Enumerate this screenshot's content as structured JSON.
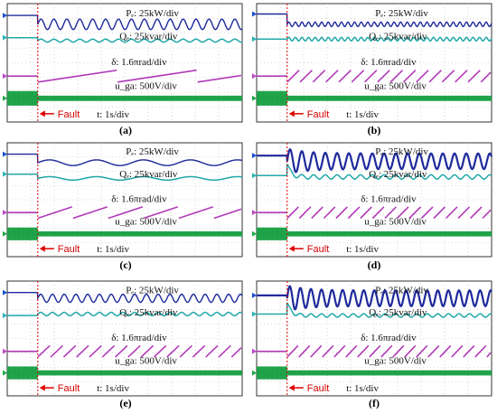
{
  "colors": {
    "P": "#1f2a9c",
    "Q": "#22a8a8",
    "delta": "#b23ab8",
    "u": "#18a045",
    "fault": "#e00000",
    "grid": "#b8b8b8",
    "frame": "#333333",
    "marker_P": "#1a4fd0",
    "marker_Q": "#2bb5b5",
    "marker_d": "#c04bc8",
    "marker_u": "#20a84a"
  },
  "icons": {
    "fault_arrow": "left-arrow-icon",
    "channel_marker": "triangle-marker-icon"
  },
  "chart_data": [
    {
      "panel": "(a)",
      "type": "line",
      "labels": {
        "P": "Pₑ:  25kW/div",
        "Q": "Qₑ:  25kvar/div",
        "delta": "δ:  1.6πrad/div",
        "u": "u_ga:  500V/div",
        "fault": "Fault",
        "time": "t:  1s/div"
      },
      "x_unit": "s",
      "x_per_div": 1,
      "fault_time_div": 1.3,
      "series": [
        {
          "name": "Pₑ",
          "pre_fault_div": 7.2,
          "post_fault_mean_div": 6.6,
          "oscillation_amp_div": 0.35,
          "oscillation_period_div": 0.55
        },
        {
          "name": "Qₑ",
          "pre_fault_div": 5.7,
          "post_fault_mean_div": 5.5,
          "oscillation_amp_div": 0.1
        },
        {
          "name": "δ",
          "pre_fault_div": 3.1,
          "post_fault_sawtooth_period_div": 3.4
        },
        {
          "name": "u_ga",
          "pre_fault_div": 1.6,
          "post_fault_div": 1.6
        }
      ]
    },
    {
      "panel": "(b)",
      "type": "line",
      "labels": {
        "P": "Pₑ:  25kW/div",
        "Q": "Qₑ:  25kvar/div",
        "delta": "δ:  1.6πrad/div",
        "u": "u_ga:  500V/div",
        "fault": "Fault",
        "time": "t:  1s/div"
      },
      "x_unit": "s",
      "x_per_div": 1,
      "fault_time_div": 1.3,
      "series": [
        {
          "name": "Pₑ",
          "pre_fault_div": 7.3,
          "post_fault_mean_div": 6.6,
          "oscillation_amp_div": 0.15,
          "oscillation_period_div": 0.28
        },
        {
          "name": "Qₑ",
          "pre_fault_div": 5.6,
          "post_fault_mean_div": 5.6,
          "oscillation_amp_div": 0.12
        },
        {
          "name": "δ",
          "pre_fault_div": 3.1,
          "post_fault_sawtooth_period_div": 0.55
        },
        {
          "name": "u_ga",
          "pre_fault_div": 1.6,
          "post_fault_div": 1.6
        }
      ]
    },
    {
      "panel": "(c)",
      "type": "line",
      "labels": {
        "P": "Pₑ:  25kW/div",
        "Q": "Qₑ:  25kvar/div",
        "delta": "δ:  1.6πrad/div",
        "u": "u_ga:  500V/div",
        "fault": "Fault",
        "time": "t:  1s/div"
      },
      "x_unit": "s",
      "x_per_div": 1,
      "fault_time_div": 1.3,
      "series": [
        {
          "name": "Pₑ",
          "pre_fault_div": 7.2,
          "post_fault_mean_div": 6.6,
          "oscillation_amp_div": 0.2,
          "oscillation_period_div": 2.0
        },
        {
          "name": "Qₑ",
          "pre_fault_div": 5.8,
          "post_fault_mean_div": 5.5,
          "oscillation_amp_div": 0.12
        },
        {
          "name": "δ",
          "pre_fault_div": 3.1,
          "post_fault_sawtooth_period_div": 1.5
        },
        {
          "name": "u_ga",
          "pre_fault_div": 1.6,
          "post_fault_div": 1.6
        }
      ]
    },
    {
      "panel": "(d)",
      "type": "line",
      "labels": {
        "P": "Pₑ:  25kW/div",
        "Q": "Qₑ:  25kvar/div",
        "delta": "δ:  1.6πrad/div",
        "u": "u_ga:  500V/div",
        "fault": "Fault",
        "time": "t:  1s/div"
      },
      "x_unit": "s",
      "x_per_div": 1,
      "fault_time_div": 1.3,
      "series": [
        {
          "name": "Pₑ",
          "pre_fault_div": 7.1,
          "post_fault_mean_div": 6.7,
          "oscillation_amp_div": 0.55,
          "oscillation_period_div": 0.5
        },
        {
          "name": "Qₑ",
          "pre_fault_div": 5.7,
          "post_fault_mean_div": 5.6,
          "oscillation_amp_div": 0.15
        },
        {
          "name": "δ",
          "pre_fault_div": 3.1,
          "post_fault_sawtooth_period_div": 0.52
        },
        {
          "name": "u_ga",
          "pre_fault_div": 1.6,
          "post_fault_div": 1.6
        }
      ]
    },
    {
      "panel": "(e)",
      "type": "line",
      "labels": {
        "P": "Pₑ:  25kW/div",
        "Q": "Qₑ:  25kvar/div",
        "delta": "δ:  1.6πrad/div",
        "u": "u_ga:  500V/div",
        "fault": "Fault",
        "time": "t:  1s/div"
      },
      "x_unit": "s",
      "x_per_div": 1,
      "fault_time_div": 1.3,
      "series": [
        {
          "name": "Pₑ",
          "pre_fault_div": 7.2,
          "post_fault_mean_div": 6.8,
          "oscillation_amp_div": 0.28,
          "oscillation_period_div": 0.5
        },
        {
          "name": "Qₑ",
          "pre_fault_div": 5.6,
          "post_fault_mean_div": 5.7,
          "oscillation_amp_div": 0.12
        },
        {
          "name": "δ",
          "pre_fault_div": 3.1,
          "post_fault_sawtooth_period_div": 0.55
        },
        {
          "name": "u_ga",
          "pre_fault_div": 1.6,
          "post_fault_div": 1.6
        }
      ]
    },
    {
      "panel": "(f)",
      "type": "line",
      "labels": {
        "P": "Pₑ:  25kW/div",
        "Q": "Qₑ:  25kvar/div",
        "delta": "δ:  1.6πrad/div",
        "u": "u_ga:  500V/div",
        "fault": "Fault",
        "time": "t:  1s/div"
      },
      "x_unit": "s",
      "x_per_div": 1,
      "fault_time_div": 1.3,
      "series": [
        {
          "name": "Pₑ",
          "pre_fault_div": 7.0,
          "post_fault_mean_div": 6.8,
          "oscillation_amp_div": 0.55,
          "oscillation_period_div": 0.45
        },
        {
          "name": "Qₑ",
          "pre_fault_div": 5.7,
          "post_fault_mean_div": 5.6,
          "oscillation_amp_div": 0.12
        },
        {
          "name": "δ",
          "pre_fault_div": 3.1,
          "post_fault_sawtooth_period_div": 0.5
        },
        {
          "name": "u_ga",
          "pre_fault_div": 1.6,
          "post_fault_div": 1.6
        }
      ]
    }
  ]
}
